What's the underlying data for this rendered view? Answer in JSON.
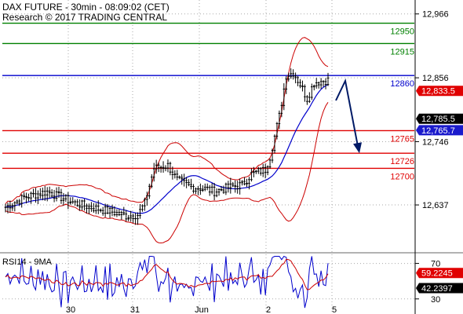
{
  "header": {
    "title": "DAX FUTURE - 30min - 08:09:02 (CET)",
    "credit": "Research © 2017 TRADING CENTRAL"
  },
  "chart_data": [
    {
      "type": "candlestick",
      "panel": "price",
      "y_axis_ticks": [
        "12,966",
        "12,856",
        "12,746",
        "12,637"
      ],
      "ylim": [
        12560,
        12990
      ],
      "x_tick_labels": [
        "30",
        "31",
        "Jun",
        "2",
        "5"
      ],
      "horizontal_levels": [
        {
          "value": 12950,
          "label": "12950",
          "color": "#008000"
        },
        {
          "value": 12915,
          "label": "12915",
          "color": "#008000"
        },
        {
          "value": 12860,
          "label": "12860",
          "color": "#0000cc"
        },
        {
          "value": 12765,
          "label": "12765",
          "color": "#e00000"
        },
        {
          "value": 12726,
          "label": "12726",
          "color": "#e00000"
        },
        {
          "value": 12700,
          "label": "12700",
          "color": "#e00000"
        }
      ],
      "price_tags": [
        {
          "label": "12,833.5",
          "value": 12833.5,
          "bg": "#e00000",
          "fg": "#ffffff"
        },
        {
          "label": "12,785.5",
          "value": 12785.5,
          "bg": "#000000",
          "fg": "#ffffff"
        },
        {
          "label": "12,765.7",
          "value": 12765.7,
          "bg": "#1a1acc",
          "fg": "#ffffff"
        }
      ],
      "forecast_arrow": {
        "from": 12820,
        "to": 12730,
        "color": "#001a66"
      },
      "series_colors": {
        "bollinger": "#cc0000",
        "moving_average": "#0000cc",
        "candles": "#000000"
      }
    },
    {
      "type": "line",
      "panel": "rsi",
      "title": "RSI14 - 9MA",
      "y_axis_ticks": [
        "70",
        "30"
      ],
      "ylim": [
        13,
        82
      ],
      "price_tags": [
        {
          "label": "59.2245",
          "value": 59.2245,
          "bg": "#e00000",
          "fg": "#ffffff"
        },
        {
          "label": "42.2397",
          "value": 42.2397,
          "bg": "#000000",
          "fg": "#ffffff"
        }
      ],
      "series_colors": {
        "rsi": "#0000cc",
        "ma": "#cc0000"
      }
    }
  ]
}
